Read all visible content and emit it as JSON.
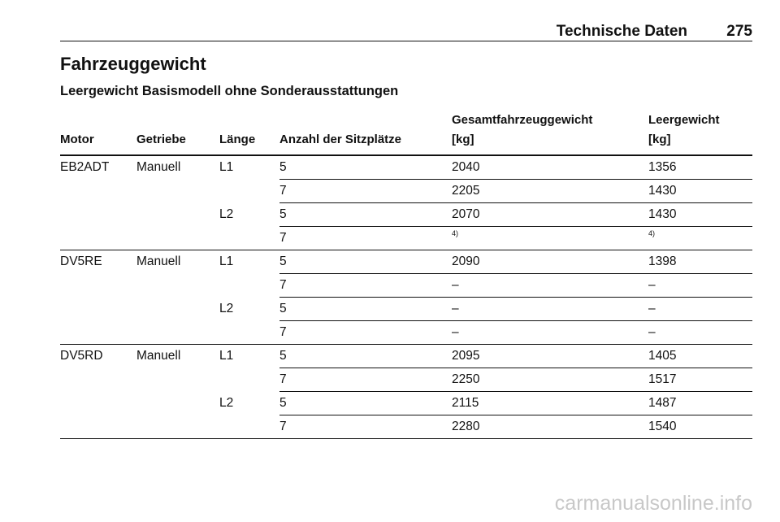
{
  "header": {
    "title": "Technische Daten",
    "page": "275"
  },
  "heading": "Fahrzeuggewicht",
  "subheading": "Leergewicht Basismodell ohne Sonderausstattungen",
  "table": {
    "columns": [
      "Motor",
      "Getriebe",
      "Länge",
      "Anzahl der Sitzplätze",
      "Gesamtfahrzeuggewicht",
      "[kg]",
      "Leergewicht",
      "[kg]"
    ],
    "groups": [
      {
        "motor": "EB2ADT",
        "getriebe": "Manuell",
        "lengths": [
          {
            "laenge": "L1",
            "rows": [
              {
                "sitze": "5",
                "gesamt": "2040",
                "leer": "1356"
              },
              {
                "sitze": "7",
                "gesamt": "2205",
                "leer": "1430"
              }
            ]
          },
          {
            "laenge": "L2",
            "rows": [
              {
                "sitze": "5",
                "gesamt": "2070",
                "leer": "1430"
              },
              {
                "sitze": "7",
                "gesamt": "4)",
                "leer": "4)"
              }
            ]
          }
        ]
      },
      {
        "motor": "DV5RE",
        "getriebe": "Manuell",
        "lengths": [
          {
            "laenge": "L1",
            "rows": [
              {
                "sitze": "5",
                "gesamt": "2090",
                "leer": "1398"
              },
              {
                "sitze": "7",
                "gesamt": "–",
                "leer": "–"
              }
            ]
          },
          {
            "laenge": "L2",
            "rows": [
              {
                "sitze": "5",
                "gesamt": "–",
                "leer": "–"
              },
              {
                "sitze": "7",
                "gesamt": "–",
                "leer": "–"
              }
            ]
          }
        ]
      },
      {
        "motor": "DV5RD",
        "getriebe": "Manuell",
        "lengths": [
          {
            "laenge": "L1",
            "rows": [
              {
                "sitze": "5",
                "gesamt": "2095",
                "leer": "1405"
              },
              {
                "sitze": "7",
                "gesamt": "2250",
                "leer": "1517"
              }
            ]
          },
          {
            "laenge": "L2",
            "rows": [
              {
                "sitze": "5",
                "gesamt": "2115",
                "leer": "1487"
              },
              {
                "sitze": "7",
                "gesamt": "2280",
                "leer": "1540"
              }
            ]
          }
        ]
      }
    ]
  },
  "watermark": "carmanualsonline.info"
}
